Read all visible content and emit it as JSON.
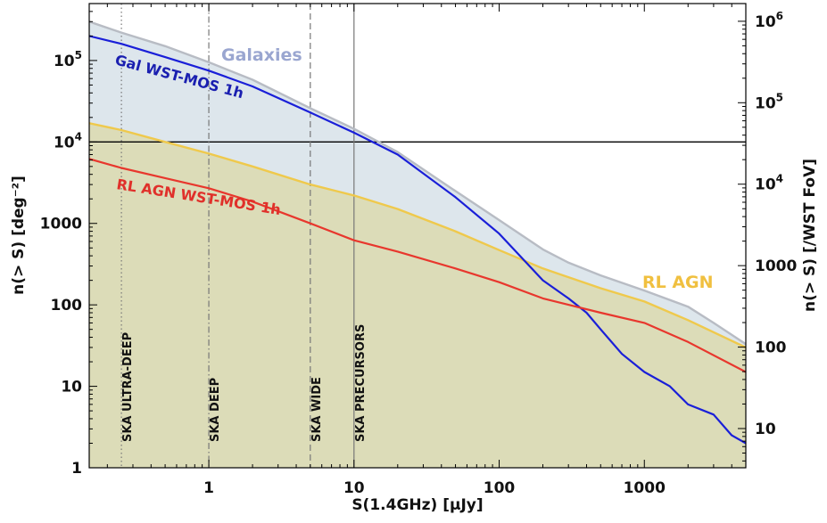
{
  "chart_data": {
    "type": "line",
    "x_scale": "log",
    "y_scale": "log",
    "xlim": [
      0.15,
      5000
    ],
    "ylim": [
      1,
      500000
    ],
    "y2lim": [
      3.3,
      1650000
    ],
    "xlabel": "S(1.4GHz) [μJy]",
    "ylabel": "n(> S) [deg⁻²]",
    "y2label": "n(> S) [/WST FoV]",
    "x_ticks": [
      {
        "value": 1,
        "label": "1"
      },
      {
        "value": 10,
        "label": "10"
      },
      {
        "value": 100,
        "label": "100"
      },
      {
        "value": 1000,
        "label": "1000"
      }
    ],
    "y_ticks": [
      {
        "value": 1,
        "label": "1"
      },
      {
        "value": 10,
        "label": "10"
      },
      {
        "value": 100,
        "label": "100"
      },
      {
        "value": 1000,
        "label": "1000"
      },
      {
        "value": 10000,
        "base": "10",
        "exp": "4"
      },
      {
        "value": 100000,
        "base": "10",
        "exp": "5"
      }
    ],
    "y2_ticks": [
      {
        "value": 10,
        "label": "10"
      },
      {
        "value": 100,
        "label": "100"
      },
      {
        "value": 1000,
        "label": "1000"
      },
      {
        "value": 10000,
        "base": "10",
        "exp": "4"
      },
      {
        "value": 100000,
        "base": "10",
        "exp": "5"
      },
      {
        "value": 1000000,
        "base": "10",
        "exp": "6"
      }
    ],
    "horizontal_line": {
      "y": 10000
    },
    "vertical_lines": [
      {
        "x": 0.25,
        "label": "SKA ULTRA-DEEP",
        "style": "dotted"
      },
      {
        "x": 1,
        "label": "SKA DEEP",
        "style": "dashdot"
      },
      {
        "x": 5,
        "label": "SKA WIDE",
        "style": "dashed"
      },
      {
        "x": 10,
        "label": "SKA PRECURSORS",
        "style": "solid"
      }
    ],
    "series": [
      {
        "name": "Galaxies",
        "kind": "band",
        "color": "#b8bcc4",
        "fill": "#dde6ec",
        "x": [
          0.15,
          0.25,
          0.5,
          1,
          2,
          5,
          10,
          20,
          50,
          100,
          200,
          300,
          500,
          1000,
          2000,
          3000,
          5000
        ],
        "y": [
          300000,
          220000,
          150000,
          95000,
          58000,
          26000,
          14500,
          7500,
          2500,
          1100,
          480,
          330,
          230,
          150,
          95,
          60,
          33
        ]
      },
      {
        "name": "RL AGN",
        "kind": "band",
        "color": "#efc94c",
        "fill": "#dcdcb8",
        "x": [
          0.15,
          0.25,
          0.5,
          1,
          2,
          5,
          10,
          20,
          50,
          100,
          200,
          500,
          1000,
          2000,
          5000
        ],
        "y": [
          17000,
          14000,
          10000,
          7200,
          5000,
          3000,
          2200,
          1500,
          800,
          470,
          280,
          160,
          110,
          65,
          30
        ]
      },
      {
        "name": "Gal WST-MOS 1h",
        "kind": "line",
        "color": "#1a1fd8",
        "x": [
          0.15,
          0.25,
          0.5,
          1,
          2,
          5,
          10,
          20,
          50,
          100,
          200,
          300,
          400,
          500,
          700,
          1000,
          1500,
          2000,
          3000,
          4000,
          5000
        ],
        "y": [
          200000,
          160000,
          110000,
          75000,
          48000,
          23000,
          13000,
          7000,
          2100,
          750,
          200,
          120,
          80,
          50,
          25,
          15,
          10,
          6,
          4.5,
          2.5,
          2
        ]
      },
      {
        "name": "RL AGN WST-MOS 1h",
        "kind": "line",
        "color": "#e8372d",
        "x": [
          0.15,
          0.25,
          0.5,
          1,
          2,
          5,
          10,
          20,
          50,
          100,
          200,
          500,
          1000,
          2000,
          5000
        ],
        "y": [
          6200,
          4800,
          3600,
          2700,
          1850,
          1000,
          620,
          450,
          280,
          190,
          120,
          80,
          60,
          35,
          15
        ]
      }
    ],
    "annotations": [
      {
        "text": "Galaxies",
        "color": "#9aa6d0"
      },
      {
        "text": "Gal WST-MOS 1h",
        "color": "#1a1fb0"
      },
      {
        "text": "RL AGN  WST-MOS 1h",
        "color": "#e0302a"
      },
      {
        "text": "RL AGN",
        "color": "#f0c040"
      }
    ]
  }
}
